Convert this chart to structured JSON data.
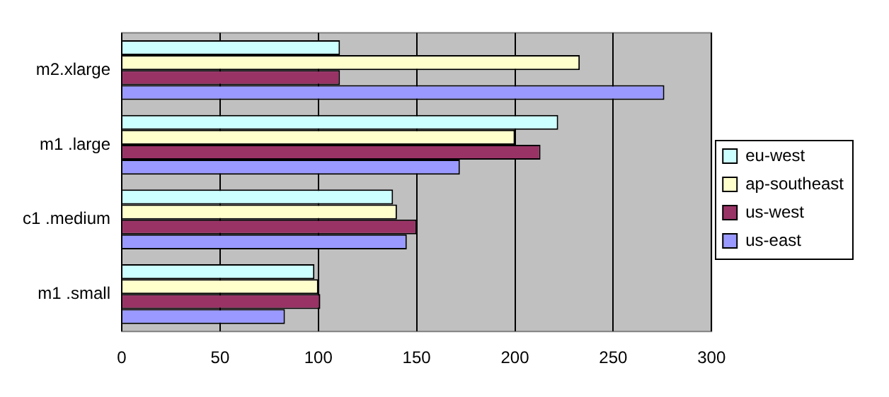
{
  "chart_data": {
    "type": "bar",
    "orientation": "horizontal",
    "categories": [
      "m2.xlarge",
      "m1 .large",
      "c1 .medium",
      "m1 .small"
    ],
    "series": [
      {
        "name": "eu-west",
        "color": "#ccffff",
        "values": [
          111,
          222,
          138,
          98
        ]
      },
      {
        "name": "ap-southeast",
        "color": "#ffffcc",
        "values": [
          233,
          200,
          140,
          100
        ]
      },
      {
        "name": "us-west",
        "color": "#993366",
        "values": [
          111,
          213,
          150,
          101
        ]
      },
      {
        "name": "us-east",
        "color": "#9999ff",
        "values": [
          276,
          172,
          145,
          83
        ]
      }
    ],
    "xlim": [
      0,
      300
    ],
    "xticks": [
      0,
      50,
      100,
      150,
      200,
      250,
      300
    ],
    "grid": "x",
    "legend": "right"
  }
}
